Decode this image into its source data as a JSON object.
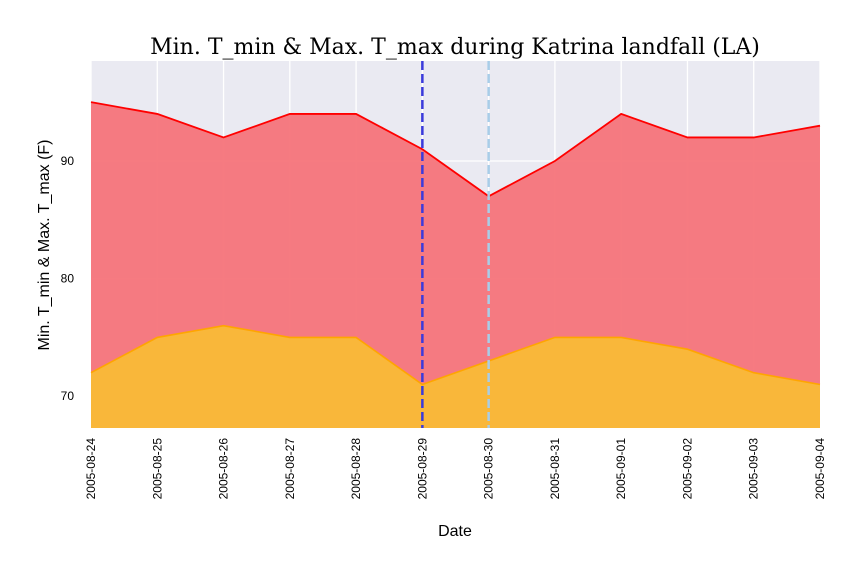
{
  "chart_data": {
    "type": "area",
    "title": "Min. T_min & Max. T_max during Katrina landfall (LA)",
    "xlabel": "Date",
    "ylabel": "Min. T_min & Max. T_max (F)",
    "x": [
      "2005-08-24",
      "2005-08-25",
      "2005-08-26",
      "2005-08-27",
      "2005-08-28",
      "2005-08-29",
      "2005-08-30",
      "2005-08-31",
      "2005-09-01",
      "2005-09-02",
      "2005-09-03",
      "2005-09-04"
    ],
    "series": [
      {
        "name": "",
        "values": [
          72,
          75,
          76,
          75,
          75,
          71,
          73,
          75,
          75,
          74,
          72,
          71
        ],
        "color": "#f9b73a"
      },
      {
        "name": "",
        "values": [
          95,
          94,
          92,
          94,
          94,
          91,
          87,
          90,
          94,
          92,
          92,
          93
        ],
        "color": "#f5747a",
        "line_color": "#ff0000"
      }
    ],
    "min_line_color": "#ffa500",
    "ylim": [
      67.3,
      98.5
    ],
    "yticks": [
      70,
      80,
      90
    ],
    "vlines": [
      {
        "x": "2005-08-29",
        "color": "#3b3bdb",
        "style": "dashed"
      },
      {
        "x": "2005-08-30",
        "color": "#a8cde8",
        "style": "dashed"
      }
    ],
    "grid": true,
    "background": "#eaeaf2"
  }
}
